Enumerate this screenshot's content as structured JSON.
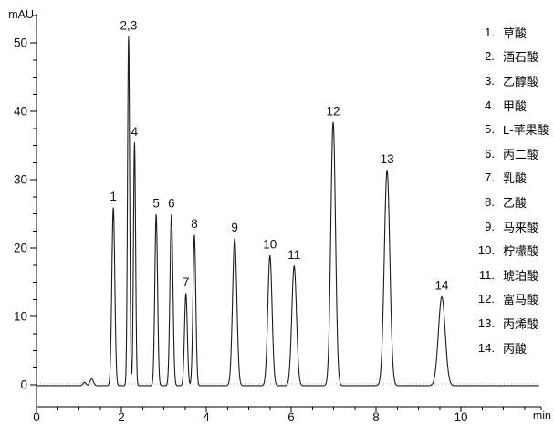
{
  "figure": {
    "background": "#ffffff",
    "axis_color": "#000000",
    "zero_line_color": "#aaaaaa"
  },
  "chart_data": {
    "type": "line",
    "title": "",
    "xlabel": "min",
    "ylabel": "mAU",
    "x_range_min": [
      0,
      11.9
    ],
    "y_range_mAU": [
      -3,
      54
    ],
    "x_major_ticks": [
      0,
      2,
      4,
      6,
      8,
      10
    ],
    "x_minor_tick_step": 0.5,
    "y_major_ticks": [
      0,
      10,
      20,
      30,
      40,
      50
    ],
    "y_minor_tick_step": 2.5,
    "grid": false,
    "legend_position": "right-inside",
    "trace_color": "#1c1c1c",
    "peaks": [
      {
        "label": "1",
        "rt_min": 1.81,
        "height_mAU": 26,
        "sigma_min": 0.035
      },
      {
        "label": "2,3",
        "rt_min": 2.17,
        "height_mAU": 51,
        "sigma_min": 0.025
      },
      {
        "label": "4",
        "rt_min": 2.31,
        "height_mAU": 35.5,
        "sigma_min": 0.025
      },
      {
        "label": "5",
        "rt_min": 2.82,
        "height_mAU": 25,
        "sigma_min": 0.032
      },
      {
        "label": "6",
        "rt_min": 3.18,
        "height_mAU": 25,
        "sigma_min": 0.035
      },
      {
        "label": "7",
        "rt_min": 3.52,
        "height_mAU": 13.5,
        "sigma_min": 0.033
      },
      {
        "label": "8",
        "rt_min": 3.72,
        "height_mAU": 22,
        "sigma_min": 0.033
      },
      {
        "label": "9",
        "rt_min": 4.67,
        "height_mAU": 21.5,
        "sigma_min": 0.05
      },
      {
        "label": "10",
        "rt_min": 5.5,
        "height_mAU": 19,
        "sigma_min": 0.05
      },
      {
        "label": "11",
        "rt_min": 6.07,
        "height_mAU": 17.5,
        "sigma_min": 0.055
      },
      {
        "label": "12",
        "rt_min": 6.99,
        "height_mAU": 38.5,
        "sigma_min": 0.055
      },
      {
        "label": "13",
        "rt_min": 8.26,
        "height_mAU": 31.5,
        "sigma_min": 0.065
      },
      {
        "label": "14",
        "rt_min": 9.55,
        "height_mAU": 13,
        "sigma_min": 0.08
      }
    ],
    "baseline_artifacts": [
      {
        "rt_min": 1.13,
        "height_mAU": 0.5,
        "sigma_min": 0.035
      },
      {
        "rt_min": 1.3,
        "height_mAU": 1.0,
        "sigma_min": 0.04
      }
    ],
    "legend": [
      {
        "num": "1.",
        "name": "草酸"
      },
      {
        "num": "2.",
        "name": "酒石酸"
      },
      {
        "num": "3.",
        "name": "乙醇酸"
      },
      {
        "num": "4.",
        "name": "甲酸"
      },
      {
        "num": "5.",
        "name": "L-苹果酸"
      },
      {
        "num": "6.",
        "name": "丙二酸"
      },
      {
        "num": "7.",
        "name": "乳酸"
      },
      {
        "num": "8.",
        "name": "乙酸"
      },
      {
        "num": "9.",
        "name": "马来酸"
      },
      {
        "num": "10.",
        "name": "柠檬酸"
      },
      {
        "num": "11.",
        "name": "琥珀酸"
      },
      {
        "num": "12.",
        "name": "富马酸"
      },
      {
        "num": "13.",
        "name": "丙烯酸"
      },
      {
        "num": "14.",
        "name": "丙酸"
      }
    ]
  }
}
